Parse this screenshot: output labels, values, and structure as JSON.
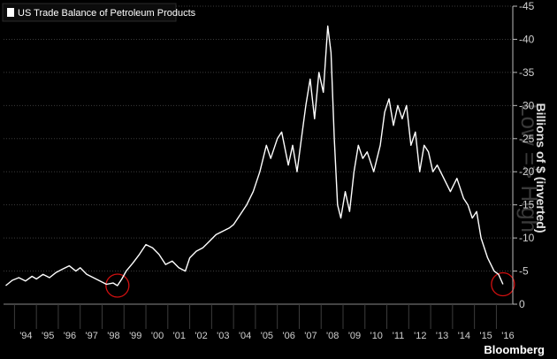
{
  "chart_data": {
    "type": "line",
    "title": "",
    "xlabel": "",
    "ylabel": "Billions of $ (inverted)",
    "watermark": "Low => High",
    "legend": {
      "position": "top-left",
      "series": [
        "US Trade Balance of Petroleum Products"
      ]
    },
    "source": "Bloomberg",
    "xlim": [
      1993.5,
      2016.75
    ],
    "ylim": [
      -45,
      0
    ],
    "inverted": true,
    "grid": true,
    "x_ticks": [
      "'94",
      "'95",
      "'96",
      "'97",
      "'98",
      "'99",
      "'00",
      "'01",
      "'02",
      "'03",
      "'04",
      "'05",
      "'06",
      "'07",
      "'08",
      "'09",
      "'10",
      "'11",
      "'12",
      "'13",
      "'14",
      "'15",
      "'16"
    ],
    "y_ticks": [
      "-45",
      "-40",
      "-35",
      "-30",
      "-25",
      "-20",
      "-15",
      "-10",
      "-5",
      "0"
    ],
    "annotations": [
      {
        "type": "circle",
        "x": 1998.7,
        "y": -2.8
      },
      {
        "type": "circle",
        "x": 2016.3,
        "y": -3.0
      }
    ],
    "series": [
      {
        "name": "US Trade Balance of Petroleum Products",
        "color": "#ffffff",
        "x": [
          1993.6,
          1993.9,
          1994.2,
          1994.5,
          1994.8,
          1995.0,
          1995.3,
          1995.6,
          1995.9,
          1996.2,
          1996.5,
          1996.8,
          1997.0,
          1997.3,
          1997.6,
          1997.9,
          1998.2,
          1998.5,
          1998.7,
          1998.9,
          1999.1,
          1999.4,
          1999.7,
          2000.0,
          2000.3,
          2000.6,
          2000.9,
          2001.2,
          2001.5,
          2001.8,
          2002.0,
          2002.3,
          2002.6,
          2002.9,
          2003.2,
          2003.5,
          2003.8,
          2004.0,
          2004.3,
          2004.6,
          2004.9,
          2005.2,
          2005.5,
          2005.7,
          2006.0,
          2006.2,
          2006.5,
          2006.7,
          2006.9,
          2007.1,
          2007.3,
          2007.5,
          2007.7,
          2007.9,
          2008.1,
          2008.3,
          2008.45,
          2008.6,
          2008.75,
          2008.9,
          2009.1,
          2009.3,
          2009.5,
          2009.7,
          2009.9,
          2010.1,
          2010.4,
          2010.7,
          2010.9,
          2011.1,
          2011.3,
          2011.5,
          2011.7,
          2011.9,
          2012.1,
          2012.3,
          2012.5,
          2012.7,
          2012.9,
          2013.1,
          2013.3,
          2013.6,
          2013.9,
          2014.2,
          2014.5,
          2014.7,
          2014.9,
          2015.1,
          2015.3,
          2015.6,
          2015.9,
          2016.1,
          2016.3
        ],
        "y": [
          -2.8,
          -3.6,
          -4.0,
          -3.5,
          -4.2,
          -3.8,
          -4.5,
          -4.0,
          -4.8,
          -5.3,
          -5.8,
          -5.0,
          -5.5,
          -4.5,
          -4.0,
          -3.5,
          -3.0,
          -3.2,
          -2.8,
          -3.8,
          -5.0,
          -6.2,
          -7.5,
          -9.0,
          -8.5,
          -7.5,
          -6.0,
          -6.5,
          -5.5,
          -5.0,
          -7.0,
          -8.0,
          -8.5,
          -9.5,
          -10.5,
          -11.0,
          -11.5,
          -12.0,
          -13.5,
          -15.0,
          -17.0,
          -20.0,
          -24.0,
          -22.0,
          -25.0,
          -26.0,
          -21.0,
          -24.0,
          -20.0,
          -25.0,
          -30.0,
          -34.0,
          -28.0,
          -35.0,
          -32.0,
          -42.0,
          -38.0,
          -25.0,
          -15.0,
          -13.0,
          -17.0,
          -14.0,
          -20.0,
          -24.0,
          -22.0,
          -23.0,
          -20.0,
          -24.0,
          -29.0,
          -31.0,
          -27.0,
          -30.0,
          -28.0,
          -30.0,
          -24.0,
          -26.0,
          -20.0,
          -24.0,
          -23.0,
          -20.0,
          -21.0,
          -19.0,
          -17.0,
          -19.0,
          -16.0,
          -15.0,
          -13.0,
          -14.0,
          -10.0,
          -7.0,
          -5.0,
          -4.5,
          -3.0
        ]
      }
    ]
  }
}
